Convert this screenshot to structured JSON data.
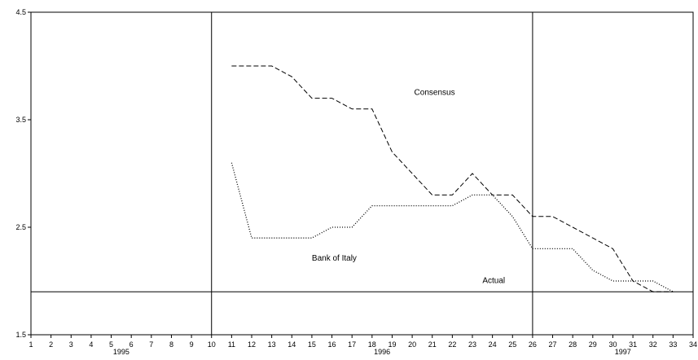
{
  "chart_data": {
    "type": "line",
    "title": "",
    "xlabel": "",
    "ylabel": "",
    "xlim": [
      1,
      34
    ],
    "ylim": [
      1.5,
      4.5
    ],
    "x_ticks": [
      1,
      2,
      3,
      4,
      5,
      6,
      7,
      8,
      9,
      10,
      11,
      12,
      13,
      14,
      15,
      16,
      17,
      18,
      19,
      20,
      21,
      22,
      23,
      24,
      25,
      26,
      27,
      28,
      29,
      30,
      31,
      32,
      33,
      34
    ],
    "y_ticks": [
      {
        "value": 1.5,
        "label": "1.5"
      },
      {
        "value": 2.5,
        "label": "2.5"
      },
      {
        "value": 3.5,
        "label": "3.5"
      },
      {
        "value": 4.5,
        "label": "4.5"
      }
    ],
    "year_labels": [
      {
        "text": "1995",
        "x": 5.5
      },
      {
        "text": "1996",
        "x": 18.5
      },
      {
        "text": "1997",
        "x": 30.5
      }
    ],
    "vertical_dividers": [
      10,
      26
    ],
    "actual": {
      "label": "Actual",
      "value": 1.9,
      "label_x": 23.5,
      "label_y": 1.98
    },
    "series": [
      {
        "label_key": "consensus",
        "style": "dashed",
        "x": [
          11,
          12,
          13,
          14,
          15,
          16,
          17,
          18,
          19,
          20,
          21,
          22,
          23,
          24,
          25,
          26,
          27,
          28,
          29,
          30,
          31,
          32,
          33
        ],
        "values": [
          4.0,
          4.0,
          4.0,
          3.9,
          3.7,
          3.7,
          3.6,
          3.6,
          3.2,
          3.0,
          2.8,
          2.8,
          3.0,
          2.8,
          2.8,
          2.6,
          2.6,
          2.5,
          2.4,
          2.3,
          2.0,
          1.9,
          1.9
        ]
      },
      {
        "label_key": "boi",
        "style": "dotted",
        "x": [
          11,
          12,
          13,
          14,
          15,
          16,
          17,
          18,
          19,
          20,
          21,
          22,
          23,
          24,
          25,
          26,
          27,
          28,
          29,
          30,
          31,
          32,
          33
        ],
        "values": [
          3.1,
          2.4,
          2.4,
          2.4,
          2.4,
          2.5,
          2.5,
          2.7,
          2.7,
          2.7,
          2.7,
          2.7,
          2.8,
          2.8,
          2.6,
          2.3,
          2.3,
          2.3,
          2.1,
          2.0,
          2.0,
          2.0,
          1.9
        ]
      }
    ],
    "annotations": {
      "consensus": {
        "text": "Consensus",
        "x": 20.1,
        "y": 3.73
      },
      "boi": {
        "text": "Bank of Italy",
        "x": 15.0,
        "y": 2.19
      }
    }
  }
}
